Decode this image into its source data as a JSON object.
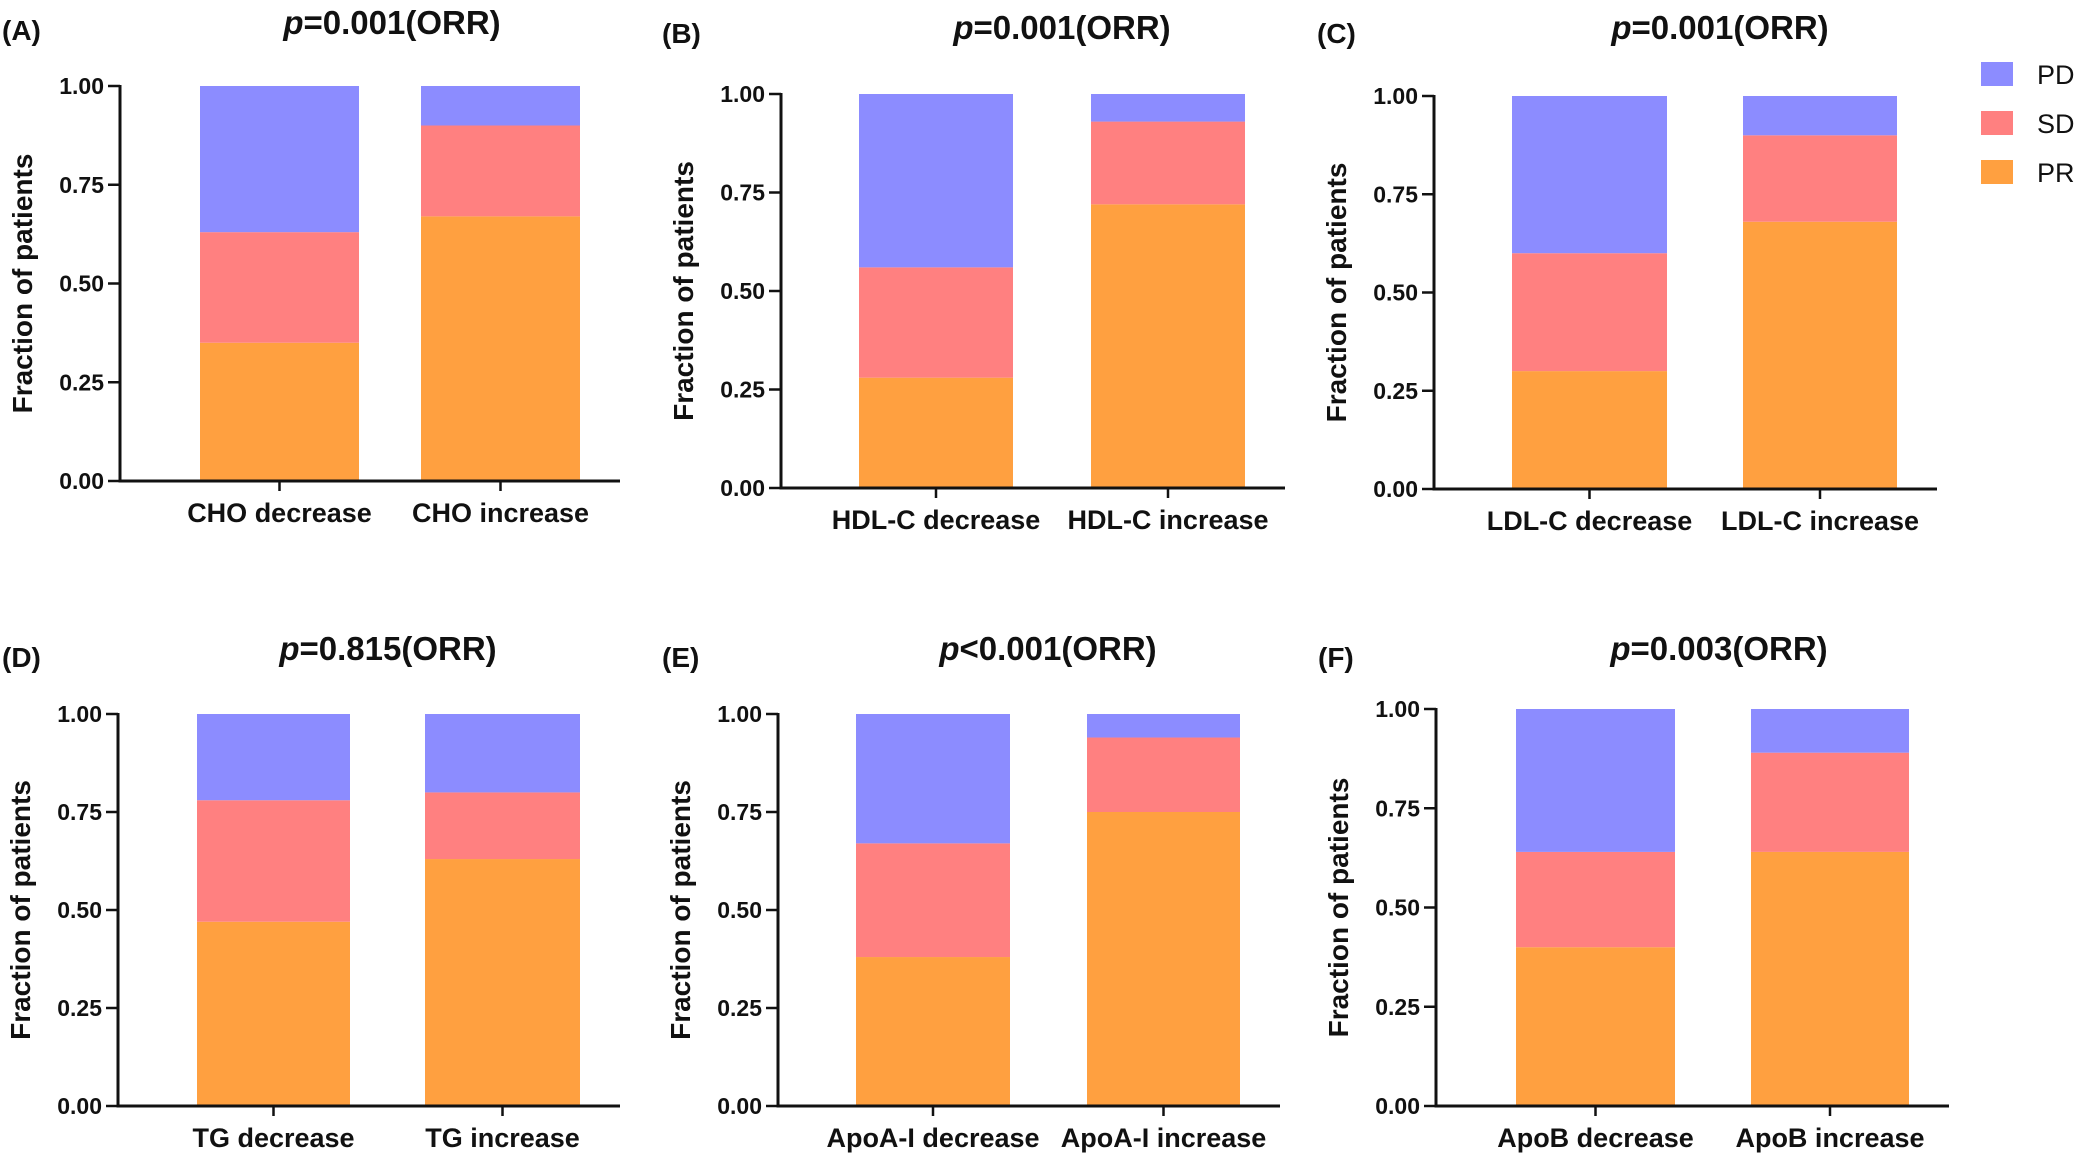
{
  "legend": {
    "position": "top-right",
    "items": [
      {
        "name": "PD",
        "color": "#8c8cff"
      },
      {
        "name": "SD",
        "color": "#ff8080"
      },
      {
        "name": "PR",
        "color": "#ffa040"
      }
    ]
  },
  "chart_data": [
    {
      "panel": "(A)",
      "type": "bar",
      "stacked": true,
      "title_italic": "p",
      "title_rest": "=0.001(ORR)",
      "ylabel": "Fraction of patients",
      "ylim": [
        0,
        1
      ],
      "yticks": [
        "0.00",
        "0.25",
        "0.50",
        "0.75",
        "1.00"
      ],
      "categories": [
        "CHO decrease",
        "CHO increase"
      ],
      "series": [
        {
          "name": "PR",
          "values": [
            0.35,
            0.67
          ]
        },
        {
          "name": "SD",
          "values": [
            0.28,
            0.23
          ]
        },
        {
          "name": "PD",
          "values": [
            0.37,
            0.1
          ]
        }
      ]
    },
    {
      "panel": "(B)",
      "type": "bar",
      "stacked": true,
      "title_italic": "p",
      "title_rest": "=0.001(ORR)",
      "ylabel": "Fraction of patients",
      "ylim": [
        0,
        1
      ],
      "yticks": [
        "0.00",
        "0.25",
        "0.50",
        "0.75",
        "1.00"
      ],
      "categories": [
        "HDL-C decrease",
        "HDL-C increase"
      ],
      "series": [
        {
          "name": "PR",
          "values": [
            0.28,
            0.72
          ]
        },
        {
          "name": "SD",
          "values": [
            0.28,
            0.21
          ]
        },
        {
          "name": "PD",
          "values": [
            0.44,
            0.07
          ]
        }
      ]
    },
    {
      "panel": "(C)",
      "type": "bar",
      "stacked": true,
      "title_italic": "p",
      "title_rest": "=0.001(ORR)",
      "ylabel": "Fraction of patients",
      "ylim": [
        0,
        1
      ],
      "yticks": [
        "0.00",
        "0.25",
        "0.50",
        "0.75",
        "1.00"
      ],
      "categories": [
        "LDL-C decrease",
        "LDL-C increase"
      ],
      "series": [
        {
          "name": "PR",
          "values": [
            0.3,
            0.68
          ]
        },
        {
          "name": "SD",
          "values": [
            0.3,
            0.22
          ]
        },
        {
          "name": "PD",
          "values": [
            0.4,
            0.1
          ]
        }
      ]
    },
    {
      "panel": "(D)",
      "type": "bar",
      "stacked": true,
      "title_italic": "p",
      "title_rest": "=0.815(ORR)",
      "ylabel": "Fraction of patients",
      "ylim": [
        0,
        1
      ],
      "yticks": [
        "0.00",
        "0.25",
        "0.50",
        "0.75",
        "1.00"
      ],
      "categories": [
        "TG decrease",
        "TG increase"
      ],
      "series": [
        {
          "name": "PR",
          "values": [
            0.47,
            0.63
          ]
        },
        {
          "name": "SD",
          "values": [
            0.31,
            0.17
          ]
        },
        {
          "name": "PD",
          "values": [
            0.22,
            0.2
          ]
        }
      ]
    },
    {
      "panel": "(E)",
      "type": "bar",
      "stacked": true,
      "title_italic": "p",
      "title_rest": "<0.001(ORR)",
      "ylabel": "Fraction of patients",
      "ylim": [
        0,
        1
      ],
      "yticks": [
        "0.00",
        "0.25",
        "0.50",
        "0.75",
        "1.00"
      ],
      "categories": [
        "ApoA-I decrease",
        "ApoA-I increase"
      ],
      "series": [
        {
          "name": "PR",
          "values": [
            0.38,
            0.75
          ]
        },
        {
          "name": "SD",
          "values": [
            0.29,
            0.19
          ]
        },
        {
          "name": "PD",
          "values": [
            0.33,
            0.06
          ]
        }
      ]
    },
    {
      "panel": "(F)",
      "type": "bar",
      "stacked": true,
      "title_italic": "p",
      "title_rest": "=0.003(ORR)",
      "ylabel": "Fraction of patients",
      "ylim": [
        0,
        1
      ],
      "yticks": [
        "0.00",
        "0.25",
        "0.50",
        "0.75",
        "1.00"
      ],
      "categories": [
        "ApoB decrease",
        "ApoB increase"
      ],
      "series": [
        {
          "name": "PR",
          "values": [
            0.4,
            0.64
          ]
        },
        {
          "name": "SD",
          "values": [
            0.24,
            0.25
          ]
        },
        {
          "name": "PD",
          "values": [
            0.36,
            0.11
          ]
        }
      ]
    }
  ]
}
